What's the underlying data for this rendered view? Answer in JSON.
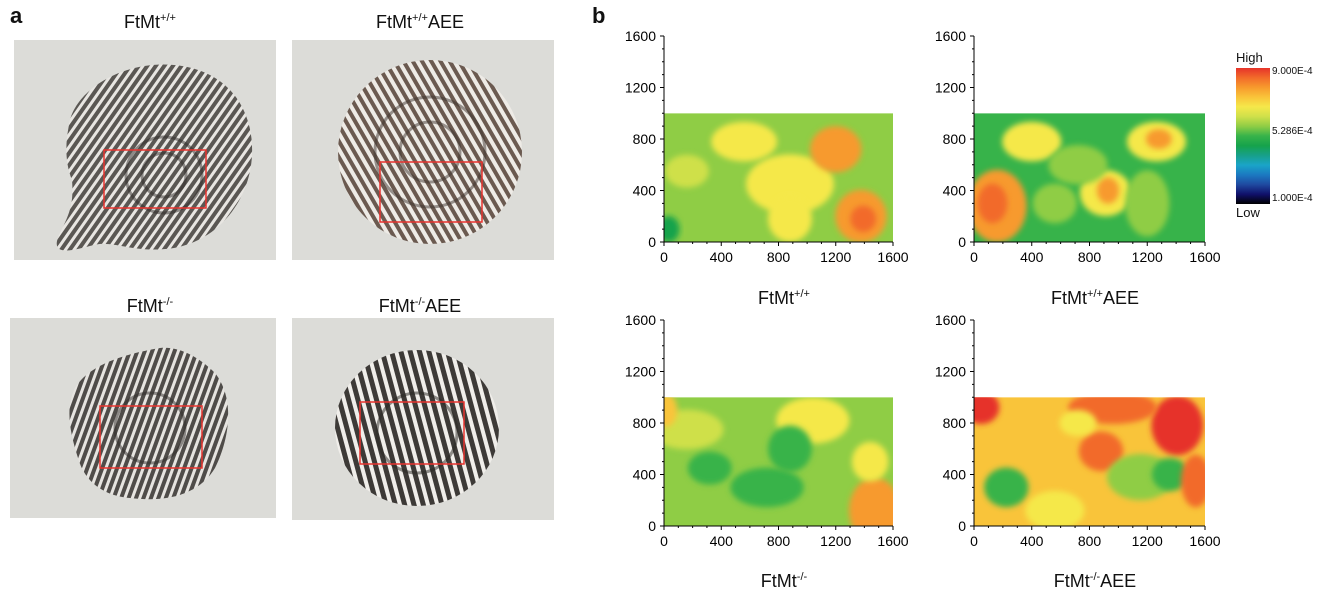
{
  "panel_a": {
    "letter": "a",
    "samples": [
      {
        "base": "FtMt",
        "sup": "+/+",
        "suffix": ""
      },
      {
        "base": "FtMt",
        "sup": "+/+",
        "suffix": "AEE"
      },
      {
        "base": "FtMt",
        "sup": "-/-",
        "suffix": ""
      },
      {
        "base": "FtMt",
        "sup": "-/-",
        "suffix": "AEE"
      }
    ],
    "roi_color": "#e8332e"
  },
  "panel_b": {
    "letter": "b",
    "maps": [
      {
        "base": "FtMt",
        "sup": "+/+",
        "suffix": ""
      },
      {
        "base": "FtMt",
        "sup": "+/+",
        "suffix": "AEE"
      },
      {
        "base": "FtMt",
        "sup": "-/-",
        "suffix": ""
      },
      {
        "base": "FtMt",
        "sup": "-/-",
        "suffix": "AEE"
      }
    ],
    "colorbar": {
      "high_label": "High",
      "low_label": "Low",
      "ticks": [
        "9.000E-4",
        "5.286E-4",
        "1.000E-4"
      ],
      "colors": [
        "#e6332a",
        "#f26b2a",
        "#f79a2d",
        "#f9c43a",
        "#f5e84a",
        "#cfe04a",
        "#8fcd45",
        "#37b34a",
        "#16a34b",
        "#17a08a",
        "#1aa4c8",
        "#1b79c1",
        "#1f4aa0",
        "#10106a",
        "#000000"
      ]
    }
  },
  "chart_data": {
    "type": "heatmap",
    "xticks": [
      "0",
      "400",
      "800",
      "1200",
      "1600"
    ],
    "yticks": [
      "0",
      "400",
      "800",
      "1200",
      "1600"
    ],
    "xlim": [
      0,
      1600
    ],
    "ylim": [
      0,
      1600
    ],
    "data_extent": {
      "x": [
        0,
        1600
      ],
      "y": [
        0,
        1000
      ]
    },
    "value_range": [
      0.0001,
      0.0009
    ]
  }
}
